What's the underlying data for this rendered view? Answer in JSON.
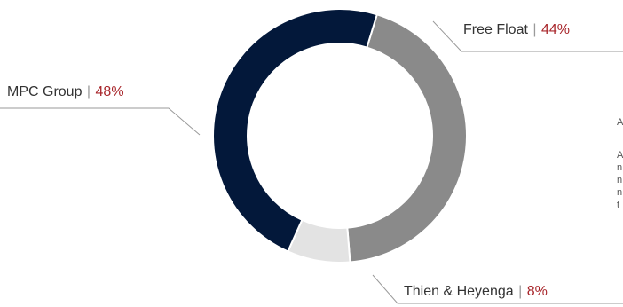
{
  "chart_data": {
    "type": "pie",
    "donut": true,
    "slices": [
      {
        "name": "Free Float",
        "value": 44,
        "pct_label": "44%",
        "color": "#8a8a8a"
      },
      {
        "name": "Thien & Heyenga",
        "value": 8,
        "pct_label": "8%",
        "color": "#e3e3e3"
      },
      {
        "name": "MPC Group",
        "value": 48,
        "pct_label": "48%",
        "color": "#03183a"
      }
    ],
    "separator": "|",
    "start_angle_deg": 17,
    "label_color": "#a8262b"
  },
  "edge_text": [
    "A",
    "A",
    "n",
    "n",
    "n",
    "t"
  ]
}
